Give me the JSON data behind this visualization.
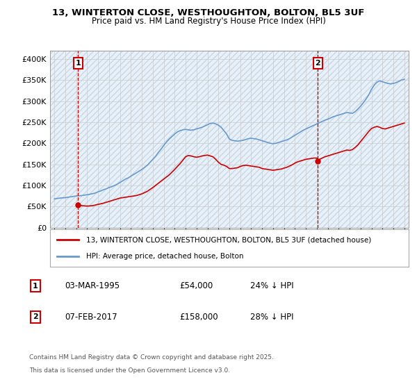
{
  "title1": "13, WINTERTON CLOSE, WESTHOUGHTON, BOLTON, BL5 3UF",
  "title2": "Price paid vs. HM Land Registry's House Price Index (HPI)",
  "ylim": [
    0,
    420000
  ],
  "yticks": [
    0,
    50000,
    100000,
    150000,
    200000,
    250000,
    300000,
    350000,
    400000
  ],
  "ytick_labels": [
    "£0",
    "£50K",
    "£100K",
    "£150K",
    "£200K",
    "£250K",
    "£300K",
    "£350K",
    "£400K"
  ],
  "xlim_start": 1992.6,
  "xlim_end": 2025.4,
  "sale1_x": 1995.17,
  "sale1_y": 54000,
  "sale2_x": 2017.09,
  "sale2_y": 158000,
  "sale1_label": "1",
  "sale2_label": "2",
  "house_color": "#cc0000",
  "hpi_color": "#6699cc",
  "hpi_fill_color": "#aaccee",
  "legend_house": "13, WINTERTON CLOSE, WESTHOUGHTON, BOLTON, BL5 3UF (detached house)",
  "legend_hpi": "HPI: Average price, detached house, Bolton",
  "footnote_line1": "Contains HM Land Registry data © Crown copyright and database right 2025.",
  "footnote_line2": "This data is licensed under the Open Government Licence v3.0.",
  "table_row1": [
    "1",
    "03-MAR-1995",
    "£54,000",
    "24% ↓ HPI"
  ],
  "table_row2": [
    "2",
    "07-FEB-2017",
    "£158,000",
    "28% ↓ HPI"
  ],
  "grid_color": "#cccccc",
  "bg_color": "#e8f0f8",
  "hatch_color": "#c8d8e8",
  "years_hpi": [
    1993,
    1993.25,
    1993.5,
    1993.75,
    1994,
    1994.25,
    1994.5,
    1994.75,
    1995,
    1995.25,
    1995.5,
    1995.75,
    1996,
    1996.25,
    1996.5,
    1996.75,
    1997,
    1997.25,
    1997.5,
    1997.75,
    1998,
    1998.25,
    1998.5,
    1998.75,
    1999,
    1999.25,
    1999.5,
    1999.75,
    2000,
    2000.25,
    2000.5,
    2000.75,
    2001,
    2001.25,
    2001.5,
    2001.75,
    2002,
    2002.25,
    2002.5,
    2002.75,
    2003,
    2003.25,
    2003.5,
    2003.75,
    2004,
    2004.25,
    2004.5,
    2004.75,
    2005,
    2005.25,
    2005.5,
    2005.75,
    2006,
    2006.25,
    2006.5,
    2006.75,
    2007,
    2007.25,
    2007.5,
    2007.75,
    2008,
    2008.25,
    2008.5,
    2008.75,
    2009,
    2009.25,
    2009.5,
    2009.75,
    2010,
    2010.25,
    2010.5,
    2010.75,
    2011,
    2011.25,
    2011.5,
    2011.75,
    2012,
    2012.25,
    2012.5,
    2012.75,
    2013,
    2013.25,
    2013.5,
    2013.75,
    2014,
    2014.25,
    2014.5,
    2014.75,
    2015,
    2015.25,
    2015.5,
    2015.75,
    2016,
    2016.25,
    2016.5,
    2016.75,
    2017,
    2017.25,
    2017.5,
    2017.75,
    2018,
    2018.25,
    2018.5,
    2018.75,
    2019,
    2019.25,
    2019.5,
    2019.75,
    2020,
    2020.25,
    2020.5,
    2020.75,
    2021,
    2021.25,
    2021.5,
    2021.75,
    2022,
    2022.25,
    2022.5,
    2022.75,
    2023,
    2023.25,
    2023.5,
    2023.75,
    2024,
    2024.25,
    2024.5,
    2024.75,
    2025
  ],
  "hpi_values": [
    68000,
    69000,
    70000,
    70500,
    71000,
    72000,
    73000,
    74000,
    75000,
    75500,
    76000,
    77000,
    78000,
    79000,
    80500,
    82000,
    85000,
    87000,
    90000,
    92000,
    95000,
    97000,
    100000,
    103000,
    107000,
    111000,
    115000,
    118000,
    122000,
    126000,
    130000,
    134000,
    138000,
    143000,
    148000,
    155000,
    162000,
    169000,
    178000,
    186000,
    195000,
    203000,
    210000,
    216000,
    222000,
    227000,
    230000,
    232000,
    233000,
    232000,
    231000,
    232000,
    234000,
    236000,
    238000,
    241000,
    244000,
    247000,
    248000,
    246000,
    243000,
    238000,
    230000,
    222000,
    210000,
    207000,
    206000,
    205000,
    206000,
    207000,
    209000,
    211000,
    212000,
    211000,
    210000,
    208000,
    206000,
    204000,
    202000,
    200000,
    199000,
    200000,
    202000,
    204000,
    206000,
    208000,
    211000,
    215000,
    219000,
    223000,
    227000,
    231000,
    234000,
    237000,
    240000,
    243000,
    246000,
    249000,
    252000,
    255000,
    257000,
    260000,
    263000,
    265000,
    267000,
    269000,
    271000,
    273000,
    272000,
    271000,
    275000,
    281000,
    288000,
    296000,
    305000,
    315000,
    328000,
    338000,
    345000,
    348000,
    346000,
    344000,
    342000,
    341000,
    342000,
    344000,
    347000,
    350000,
    352000
  ],
  "years_house": [
    1995.17,
    1995.5,
    1996,
    1996.5,
    1997,
    1997.5,
    1998,
    1998.5,
    1999,
    1999.5,
    2000,
    2000.5,
    2001,
    2001.5,
    2002,
    2002.5,
    2003,
    2003.5,
    2004,
    2004.25,
    2004.5,
    2004.75,
    2005,
    2005.25,
    2005.5,
    2005.75,
    2006,
    2006.25,
    2006.5,
    2006.75,
    2007,
    2007.25,
    2007.5,
    2007.75,
    2008,
    2008.25,
    2008.5,
    2008.75,
    2009,
    2009.25,
    2009.5,
    2009.75,
    2010,
    2010.25,
    2010.5,
    2010.75,
    2011,
    2011.25,
    2011.5,
    2011.75,
    2012,
    2012.25,
    2012.5,
    2012.75,
    2013,
    2013.25,
    2013.5,
    2013.75,
    2014,
    2014.25,
    2014.5,
    2014.75,
    2015,
    2015.25,
    2015.5,
    2015.75,
    2016,
    2016.25,
    2016.5,
    2016.75,
    2017,
    2017.09,
    2017.25,
    2017.5,
    2017.75,
    2018,
    2018.25,
    2018.5,
    2018.75,
    2019,
    2019.25,
    2019.5,
    2019.75,
    2020,
    2020.25,
    2020.5,
    2020.75,
    2021,
    2021.25,
    2021.5,
    2021.75,
    2022,
    2022.25,
    2022.5,
    2022.75,
    2023,
    2023.25,
    2023.5,
    2023.75,
    2024,
    2024.25,
    2024.5,
    2024.75,
    2025
  ],
  "house_values": [
    54000,
    52000,
    51000,
    52000,
    55000,
    58000,
    62000,
    66000,
    70000,
    72000,
    74000,
    76000,
    80000,
    86000,
    95000,
    105000,
    115000,
    125000,
    138000,
    145000,
    152000,
    160000,
    168000,
    171000,
    170000,
    168000,
    167000,
    168000,
    170000,
    171000,
    172000,
    170000,
    168000,
    162000,
    155000,
    150000,
    148000,
    145000,
    140000,
    140000,
    141000,
    142000,
    145000,
    147000,
    148000,
    147000,
    146000,
    145000,
    144000,
    143000,
    140000,
    139000,
    138000,
    137000,
    136000,
    137000,
    138000,
    139000,
    141000,
    143000,
    146000,
    149000,
    153000,
    156000,
    158000,
    160000,
    162000,
    163000,
    164000,
    165000,
    165000,
    158000,
    162000,
    165000,
    168000,
    170000,
    172000,
    174000,
    176000,
    178000,
    180000,
    182000,
    184000,
    183000,
    185000,
    190000,
    196000,
    204000,
    212000,
    220000,
    228000,
    235000,
    238000,
    240000,
    238000,
    235000,
    234000,
    236000,
    238000,
    240000,
    242000,
    244000,
    246000,
    248000
  ]
}
